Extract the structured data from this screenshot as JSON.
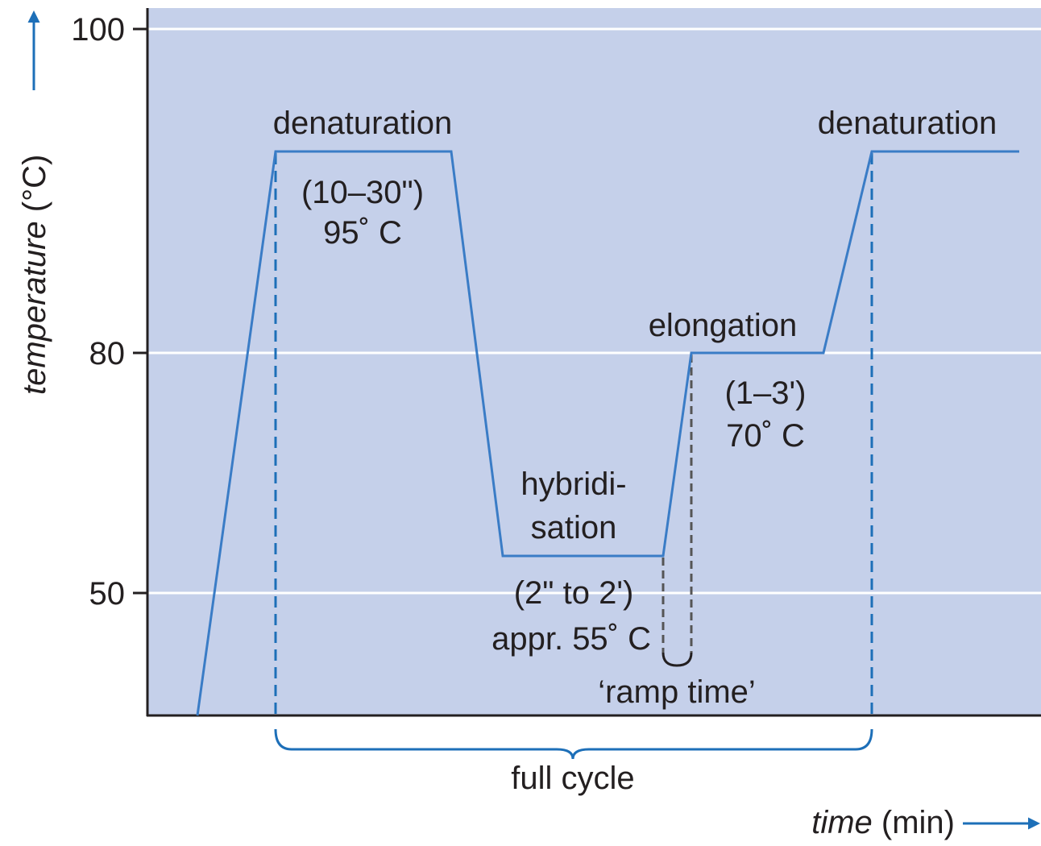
{
  "y_axis": {
    "label": "temperature",
    "unit": "(°C)",
    "ticks": [
      "100",
      "80",
      "50"
    ]
  },
  "x_axis": {
    "label": "time",
    "unit": "(min)"
  },
  "phases": {
    "denaturation": {
      "name": "denaturation",
      "duration": "(10–30\")",
      "temperature": "95˚ C"
    },
    "hybridisation": {
      "name_line1": "hybridi-",
      "name_line2": "sation",
      "duration": "(2\" to 2')",
      "temperature": "appr. 55˚ C"
    },
    "elongation": {
      "name": "elongation",
      "duration": "(1–3')",
      "temperature": "70˚ C"
    },
    "next_denaturation": {
      "name": "denaturation"
    }
  },
  "ramp_time": "‘ramp time’",
  "full_cycle": "full cycle"
}
